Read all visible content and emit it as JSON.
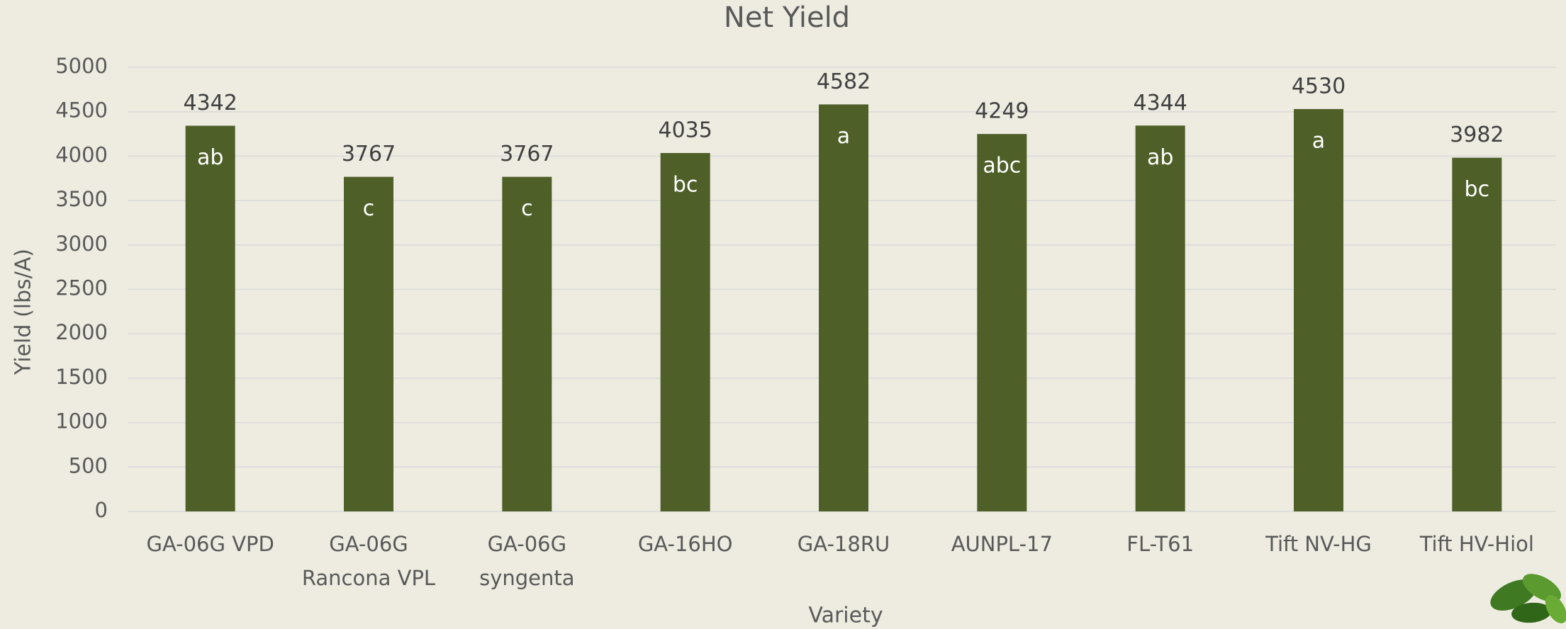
{
  "chart_data": {
    "type": "bar",
    "title": "Net Yield",
    "x_label": "Variety",
    "y_label": "Yield (lbs/A)",
    "categories": [
      "GA-06G VPD",
      "GA-06G Rancona VPL",
      "GA-06G syngenta",
      "GA-16HO",
      "GA-18RU",
      "AUNPL-17",
      "FL-T61",
      "Tift NV-HG",
      "Tift HV-Hiol"
    ],
    "values": [
      4342,
      3767,
      3767,
      4035,
      4582,
      4249,
      4344,
      4530,
      3982
    ],
    "letters": [
      "ab",
      "c",
      "c",
      "bc",
      "a",
      "abc",
      "ab",
      "a",
      "bc"
    ],
    "color": "#4e5f28",
    "ylim": [
      0,
      5000
    ],
    "yticks": [
      0,
      500,
      1000,
      1500,
      2000,
      2500,
      3000,
      3500,
      4000,
      4500,
      5000
    ],
    "grid": true
  }
}
